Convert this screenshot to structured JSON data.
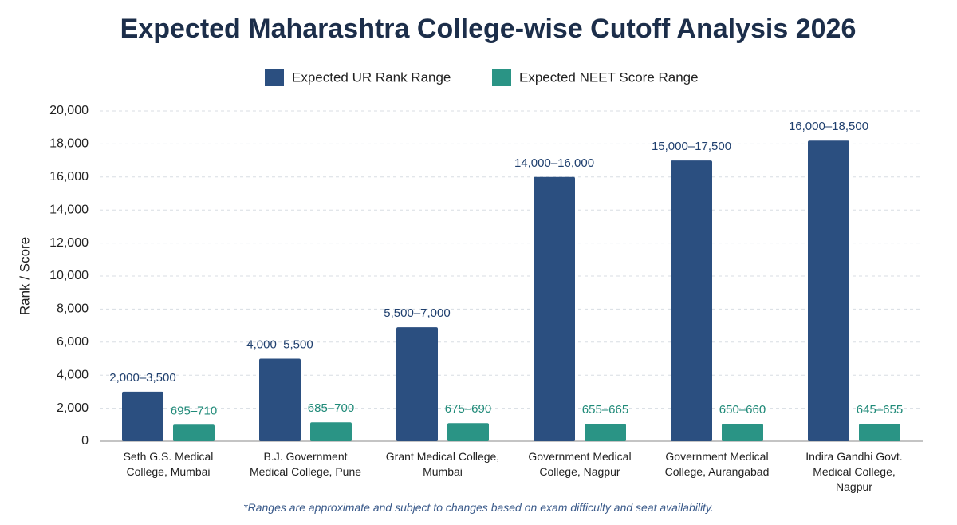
{
  "chart_data": {
    "type": "bar",
    "title": "Expected Maharashtra College-wise Cutoff Analysis 2026",
    "y_label": "Rank / Score",
    "footnote": "*Ranges are approximate and subject to changes based on exam difficulty and seat availability.",
    "categories": [
      "Seth G.S. Medical College, Mumbai",
      "B.J. Government Medical College, Pune",
      "Grant Medical College, Mumbai",
      "Government Medical College, Nagpur",
      "Government Medical College, Aurangabad",
      "Indira Gandhi Govt. Medical College, Nagpur"
    ],
    "series": [
      {
        "name": "Expected UR Rank Range",
        "color": "#2b4f80",
        "label_color": "#1f3f6e",
        "values": [
          3000,
          5000,
          6900,
          16000,
          17000,
          18200
        ],
        "value_labels": [
          "2,000–3,500",
          "4,000–5,500",
          "5,500–7,000",
          "14,000–16,000",
          "15,000–17,500",
          "16,000–18,500"
        ]
      },
      {
        "name": "Expected NEET Score Range",
        "color": "#2a9485",
        "label_color": "#1f8a78",
        "values": [
          1000,
          1150,
          1100,
          1050,
          1050,
          1050
        ],
        "value_labels": [
          "695–710",
          "685–700",
          "675–690",
          "655–665",
          "650–660",
          "645–655"
        ]
      }
    ],
    "ylim": [
      0,
      20000
    ],
    "yticks": [
      0,
      {
        "value": 2000,
        "label": "2,000"
      },
      {
        "value": 4000,
        "label": "4,000"
      },
      {
        "value": 6000,
        "label": "6,000"
      },
      {
        "value": 8000,
        "label": "8,000"
      },
      {
        "value": 10000,
        "label": "10,000"
      },
      {
        "value": 12000,
        "label": "12,000"
      },
      {
        "value": 14000,
        "label": "14,000"
      },
      {
        "value": 16000,
        "label": "16,000"
      },
      {
        "value": 18000,
        "label": "18,000"
      },
      {
        "value": 20000,
        "label": "20,000"
      }
    ],
    "grid": true,
    "legend": "top"
  }
}
